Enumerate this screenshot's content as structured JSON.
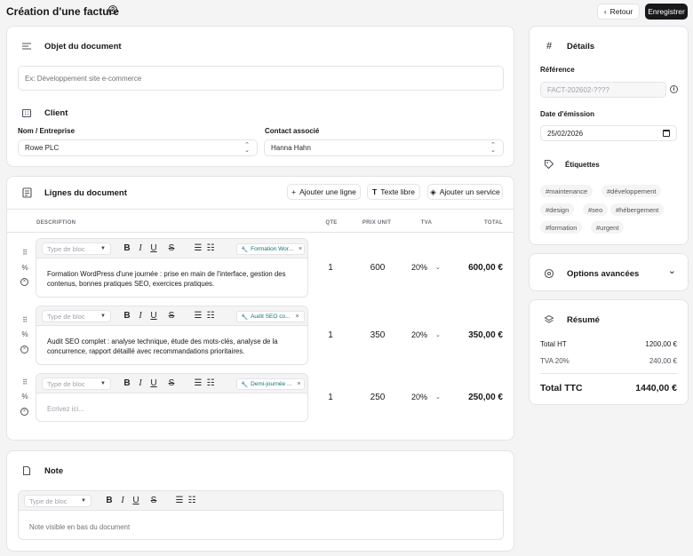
{
  "header": {
    "title": "Création d'une facture",
    "back_label": "Retour",
    "save_label": "Enregistrer"
  },
  "objet": {
    "title": "Objet du document",
    "placeholder": "Ex: Développement site e-commerce"
  },
  "client": {
    "title": "Client",
    "company_label": "Nom / Entreprise",
    "company_value": "Rowe PLC",
    "contact_label": "Contact associé",
    "contact_value": "Hanna Hahn"
  },
  "lines": {
    "title": "Lignes du document",
    "add_line": "Ajouter une ligne",
    "free_text": "Texte libre",
    "add_service": "Ajouter un service",
    "headers": {
      "description": "DESCRIPTION",
      "qty": "QTE",
      "unit_price": "PRIX UNIT",
      "vat": "TVA",
      "total": "TOTAL"
    },
    "block_placeholder": "Type de bloc",
    "items": [
      {
        "tag": "Formation Wor...",
        "text": "Formation WordPress d'une journée : prise en main de l'interface, gestion des contenus, bonnes pratiques SEO, exercices pratiques.",
        "qty": "1",
        "price": "600",
        "vat": "20%",
        "total": "600,00 €"
      },
      {
        "tag": "Audit SEO co...",
        "text": "Audit SEO complet : analyse technique, étude des mots-clés, analyse de la concurrence, rapport détaillé avec recommandations prioritaires.",
        "qty": "1",
        "price": "350",
        "vat": "20%",
        "total": "350,00 €"
      },
      {
        "tag": "Demi-journée ...",
        "text": "",
        "placeholder": "Ecrivez ici...",
        "qty": "1",
        "price": "250",
        "vat": "20%",
        "total": "250,00 €"
      }
    ]
  },
  "note": {
    "title": "Note",
    "block_placeholder": "Type de bloc",
    "placeholder": "Note visible en bas du document"
  },
  "details": {
    "title": "Détails",
    "ref_label": "Référence",
    "ref_placeholder": "FACT-202602-????",
    "date_label": "Date d'émission",
    "date_value": "25/02/2026",
    "tags_label": "Étiquettes",
    "tags": [
      "#maintenance",
      "#développement",
      "#design",
      "#seo",
      "#hébergement",
      "#formation",
      "#urgent"
    ]
  },
  "advanced": {
    "title": "Options avancées"
  },
  "summary": {
    "title": "Résumé",
    "ht_label": "Total HT",
    "ht_value": "1200,00 €",
    "vat_label": "TVA 20%",
    "vat_value": "240,00 €",
    "ttc_label": "Total TTC",
    "ttc_value": "1440,00 €"
  }
}
